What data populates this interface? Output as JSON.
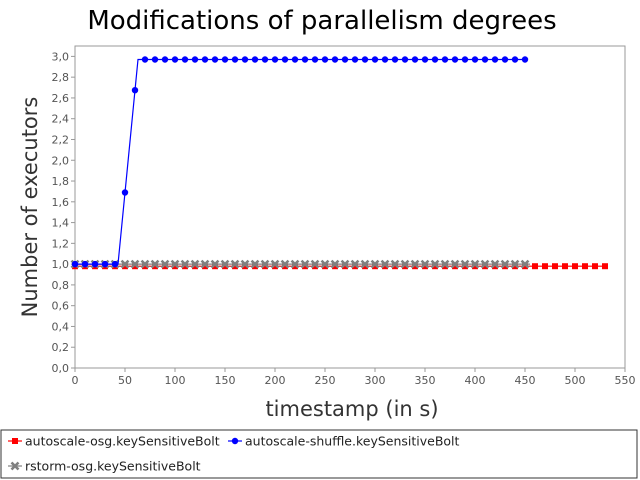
{
  "chart_data": {
    "type": "line",
    "title": "Modifications of parallelism degrees",
    "xlabel": "timestamp (in s)",
    "ylabel": "Number of executors",
    "xlim": [
      0,
      550
    ],
    "ylim": [
      0,
      3.1
    ],
    "xticks": [
      0,
      50,
      100,
      150,
      200,
      250,
      300,
      350,
      400,
      450,
      500,
      550
    ],
    "yticks": [
      "0,0",
      "0,2",
      "0,4",
      "0,6",
      "0,8",
      "1,0",
      "1,2",
      "1,4",
      "1,6",
      "1,8",
      "2,0",
      "2,2",
      "2,4",
      "2,6",
      "2,8",
      "3,0"
    ],
    "grid": false,
    "legend_position": "bottom",
    "series": [
      {
        "name": "autoscale-osg.keySensitiveBolt",
        "color": "#ff0000",
        "marker": "square",
        "x_start": 0,
        "x_end": 530,
        "x_step": 10,
        "values": [
          [
            0,
            0.98
          ],
          [
            530,
            0.98
          ]
        ]
      },
      {
        "name": "autoscale-shuffle.keySensitiveBolt",
        "color": "#0000ff",
        "marker": "circle",
        "x_start": 0,
        "x_end": 450,
        "x_step": 10,
        "values": [
          [
            0,
            1.0
          ],
          [
            43,
            1.0
          ],
          [
            63,
            2.97
          ],
          [
            450,
            2.97
          ]
        ]
      },
      {
        "name": "rstorm-osg.keySensitiveBolt",
        "color": "#808080",
        "marker": "x",
        "x_start": 0,
        "x_end": 455,
        "x_step": 10,
        "values": [
          [
            0,
            1.0
          ],
          [
            455,
            1.0
          ]
        ]
      }
    ]
  }
}
